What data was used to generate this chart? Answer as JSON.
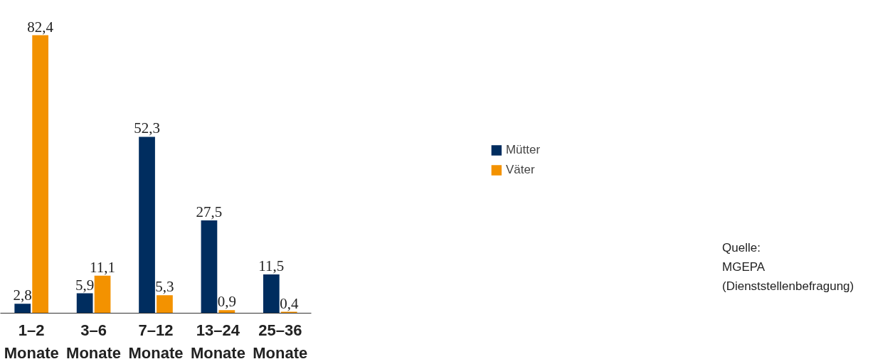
{
  "chart_data": {
    "type": "bar",
    "categories": [
      "1–2\nMonate",
      "3–6\nMonate",
      "7–12\nMonate",
      "13–24\nMonate",
      "25–36\nMonate"
    ],
    "series": [
      {
        "name": "Mütter",
        "color": "#002d5f",
        "values": [
          2.8,
          5.9,
          52.3,
          27.5,
          11.5
        ],
        "value_labels": [
          "2,8",
          "5,9",
          "52,3",
          "27,5",
          "11,5"
        ]
      },
      {
        "name": "Väter",
        "color": "#f39200",
        "values": [
          82.4,
          11.1,
          5.3,
          0.9,
          0.4
        ],
        "value_labels": [
          "82,4",
          "11,1",
          "5,3",
          "0,9",
          "0,4"
        ]
      }
    ],
    "legend": "right",
    "grid": false,
    "tick_labels": "x",
    "annotations": [
      "Quelle:\nMGEPA\n(Dienststellenbefragung)"
    ]
  }
}
